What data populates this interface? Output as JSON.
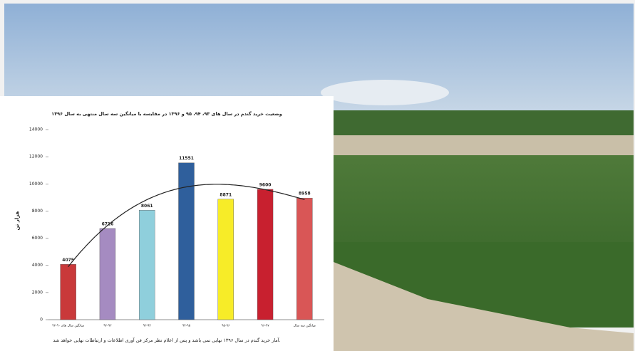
{
  "chart_data": {
    "type": "bar",
    "title": "وضعیت خرید گندم در سال های ۹۳، ۹۴، ۹۵ و ۱۳۹۶ در مقایسه با میانگین سه سال منتهی به سال ۱۳۹۶",
    "y_label": "هزار تن",
    "note": "آمار خرید گندم در سال ۱۳۹۶ نهایی نمی باشد و پس از اعلام نظر مرکز فن آوری اطلاعات و ارتباطات نهایی خواهد شد.",
    "categories": [
      "میانگین سال های ۹۰-۹۲",
      "۹۲-۹۳",
      "۹۳-۹۴",
      "۹۴-۹۵",
      "۹۵-۹۶",
      "۹۶-۹۷",
      "میانگین سه سال"
    ],
    "values": [
      4075,
      6716,
      8061,
      11551,
      8871,
      9600,
      8958
    ],
    "colors": [
      "#c9393a",
      "#a58bc1",
      "#8fcfdc",
      "#2f5f9c",
      "#f7ec28",
      "#c8202f",
      "#d95656"
    ],
    "ylim": [
      0,
      14000
    ],
    "yticks": [
      0,
      2000,
      4000,
      6000,
      8000,
      10000,
      12000,
      14000
    ],
    "trendline": "polynomial"
  }
}
